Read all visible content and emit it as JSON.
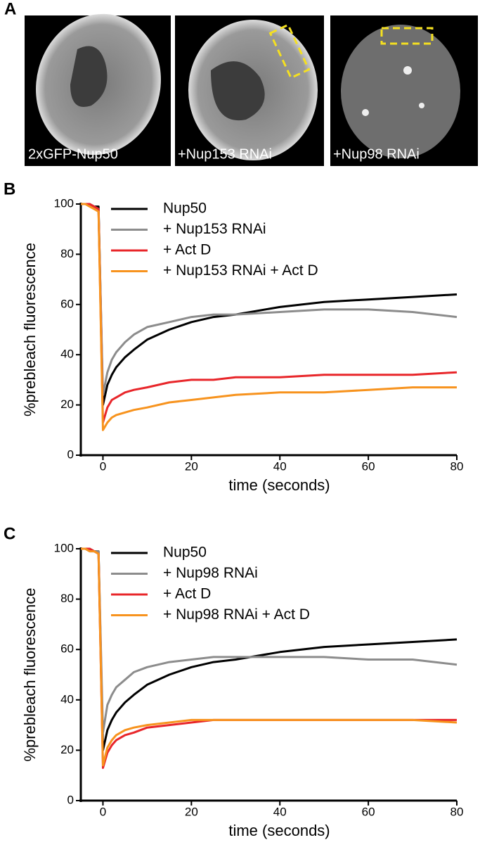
{
  "panel_a": {
    "label": "A",
    "images": [
      {
        "caption": "2xGFP-Nup50"
      },
      {
        "caption": "+Nup153 RNAi"
      },
      {
        "caption": "+Nup98 RNAi"
      }
    ]
  },
  "chart_data": [
    {
      "type": "line",
      "panel_label": "B",
      "xlabel": "time (seconds)",
      "ylabel": "%prebleach fluorescence",
      "x": [
        -5,
        -4,
        -3,
        -2,
        -1,
        0,
        1,
        2,
        3,
        5,
        7,
        10,
        15,
        20,
        25,
        30,
        40,
        50,
        60,
        70,
        80
      ],
      "series": [
        {
          "name": "Nup50",
          "color": "#000000",
          "values": [
            100,
            100,
            100,
            99,
            99,
            20,
            28,
            32,
            35,
            39,
            42,
            46,
            50,
            53,
            55,
            56,
            59,
            61,
            62,
            63,
            64
          ]
        },
        {
          "name": "+ Nup153 RNAi",
          "color": "#8c8c8c",
          "values": [
            100,
            100,
            100,
            99,
            98,
            24,
            33,
            38,
            41,
            45,
            48,
            51,
            53,
            55,
            56,
            56,
            57,
            58,
            58,
            57,
            55
          ]
        },
        {
          "name": "+ Act D",
          "color": "#e8262a",
          "values": [
            100,
            100,
            100,
            99,
            98,
            13,
            19,
            22,
            23,
            25,
            26,
            27,
            29,
            30,
            30,
            31,
            31,
            32,
            32,
            32,
            33
          ]
        },
        {
          "name": "+ Nup153 RNAi + Act D",
          "color": "#f7931e",
          "values": [
            100,
            100,
            99,
            98,
            97,
            10,
            13,
            15,
            16,
            17,
            18,
            19,
            21,
            22,
            23,
            24,
            25,
            25,
            26,
            27,
            27
          ]
        }
      ],
      "xlim": [
        -5,
        80
      ],
      "ylim": [
        0,
        100
      ],
      "xticks": [
        0,
        20,
        40,
        60,
        80
      ],
      "yticks": [
        0,
        20,
        40,
        60,
        80,
        100
      ]
    },
    {
      "type": "line",
      "panel_label": "C",
      "xlabel": "time (seconds)",
      "ylabel": "%prebleach fluorescence",
      "x": [
        -5,
        -4,
        -3,
        -2,
        -1,
        0,
        1,
        2,
        3,
        5,
        7,
        10,
        15,
        20,
        25,
        30,
        40,
        50,
        60,
        70,
        80
      ],
      "series": [
        {
          "name": "Nup50",
          "color": "#000000",
          "values": [
            100,
            100,
            100,
            99,
            99,
            20,
            28,
            32,
            35,
            39,
            42,
            46,
            50,
            53,
            55,
            56,
            59,
            61,
            62,
            63,
            64
          ]
        },
        {
          "name": "+ Nup98 RNAi",
          "color": "#8c8c8c",
          "values": [
            100,
            100,
            99,
            99,
            99,
            27,
            38,
            42,
            45,
            48,
            51,
            53,
            55,
            56,
            57,
            57,
            57,
            57,
            56,
            56,
            54
          ]
        },
        {
          "name": "+ Act D",
          "color": "#e8262a",
          "values": [
            100,
            100,
            100,
            99,
            98,
            13,
            19,
            22,
            24,
            26,
            27,
            29,
            30,
            31,
            32,
            32,
            32,
            32,
            32,
            32,
            32
          ]
        },
        {
          "name": "+ Nup98 RNAi + Act D",
          "color": "#f7931e",
          "values": [
            100,
            100,
            99,
            99,
            98,
            14,
            21,
            24,
            26,
            28,
            29,
            30,
            31,
            32,
            32,
            32,
            32,
            32,
            32,
            32,
            31
          ]
        }
      ],
      "xlim": [
        -5,
        80
      ],
      "ylim": [
        0,
        100
      ],
      "xticks": [
        0,
        20,
        40,
        60,
        80
      ],
      "yticks": [
        0,
        20,
        40,
        60,
        80,
        100
      ]
    }
  ]
}
